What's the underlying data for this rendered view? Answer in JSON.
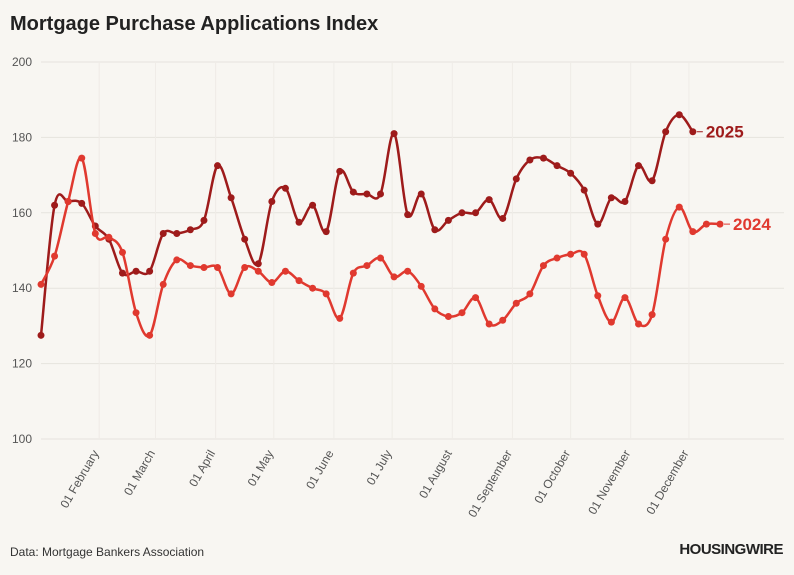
{
  "chart_data": {
    "type": "line",
    "title": "Mortgage Purchase Applications Index",
    "source": "Data: Mortgage Bankers Association",
    "brand": "HOUSINGWIRE",
    "x": [
      0,
      7,
      14,
      21,
      28,
      35,
      42,
      49,
      56,
      63,
      70,
      77,
      84,
      91,
      98,
      105,
      112,
      119,
      126,
      133,
      140,
      147,
      154,
      161,
      168,
      175,
      182,
      189,
      196,
      203,
      210,
      217,
      224,
      231,
      238,
      245,
      252,
      259,
      266,
      273,
      280,
      287,
      294,
      301,
      308,
      315,
      322,
      329,
      336,
      343,
      350
    ],
    "xlim": [
      0,
      350
    ],
    "xticks": [
      {
        "value": 30,
        "label": "01 February"
      },
      {
        "value": 59,
        "label": "01 March"
      },
      {
        "value": 90,
        "label": "01 April"
      },
      {
        "value": 120,
        "label": "01 May"
      },
      {
        "value": 151,
        "label": "01 June"
      },
      {
        "value": 181,
        "label": "01 July"
      },
      {
        "value": 212,
        "label": "01 August"
      },
      {
        "value": 243,
        "label": "01 September"
      },
      {
        "value": 273,
        "label": "01 October"
      },
      {
        "value": 304,
        "label": "01 November"
      },
      {
        "value": 334,
        "label": "01 December"
      }
    ],
    "ylim": [
      100,
      200
    ],
    "yticks": [
      100,
      120,
      140,
      160,
      180,
      200
    ],
    "grid": true,
    "series": [
      {
        "name": "2025",
        "color": "#9e1b1b",
        "values": [
          127.5,
          162,
          163,
          162.5,
          156.5,
          153,
          144,
          144.5,
          144.5,
          154.5,
          154.5,
          155.5,
          158,
          172.5,
          164,
          153,
          146.5,
          163,
          166.5,
          157.5,
          162,
          155,
          171,
          165.5,
          165,
          165,
          181,
          159.5,
          165,
          155.5,
          158,
          160,
          160,
          163.5,
          158.5,
          169,
          174,
          174.5,
          172.5,
          170.5,
          166,
          157,
          164,
          163,
          172.5,
          168.5,
          181.5,
          186,
          181.5,
          null,
          null
        ]
      },
      {
        "name": "2024",
        "color": "#e0392f",
        "values": [
          141,
          148.5,
          163,
          174.5,
          154.5,
          153.5,
          149.5,
          133.5,
          127.5,
          141,
          147.5,
          146,
          145.5,
          145.5,
          138.5,
          145.5,
          144.5,
          141.5,
          144.5,
          142,
          140,
          138.5,
          132,
          144,
          146,
          148,
          143,
          144.5,
          140.5,
          134.5,
          132.5,
          133.5,
          137.5,
          130.5,
          131.5,
          136,
          138.5,
          146,
          148,
          149,
          149,
          138,
          131,
          137.5,
          130.5,
          133,
          153,
          161.5,
          155,
          157,
          157
        ]
      }
    ]
  }
}
